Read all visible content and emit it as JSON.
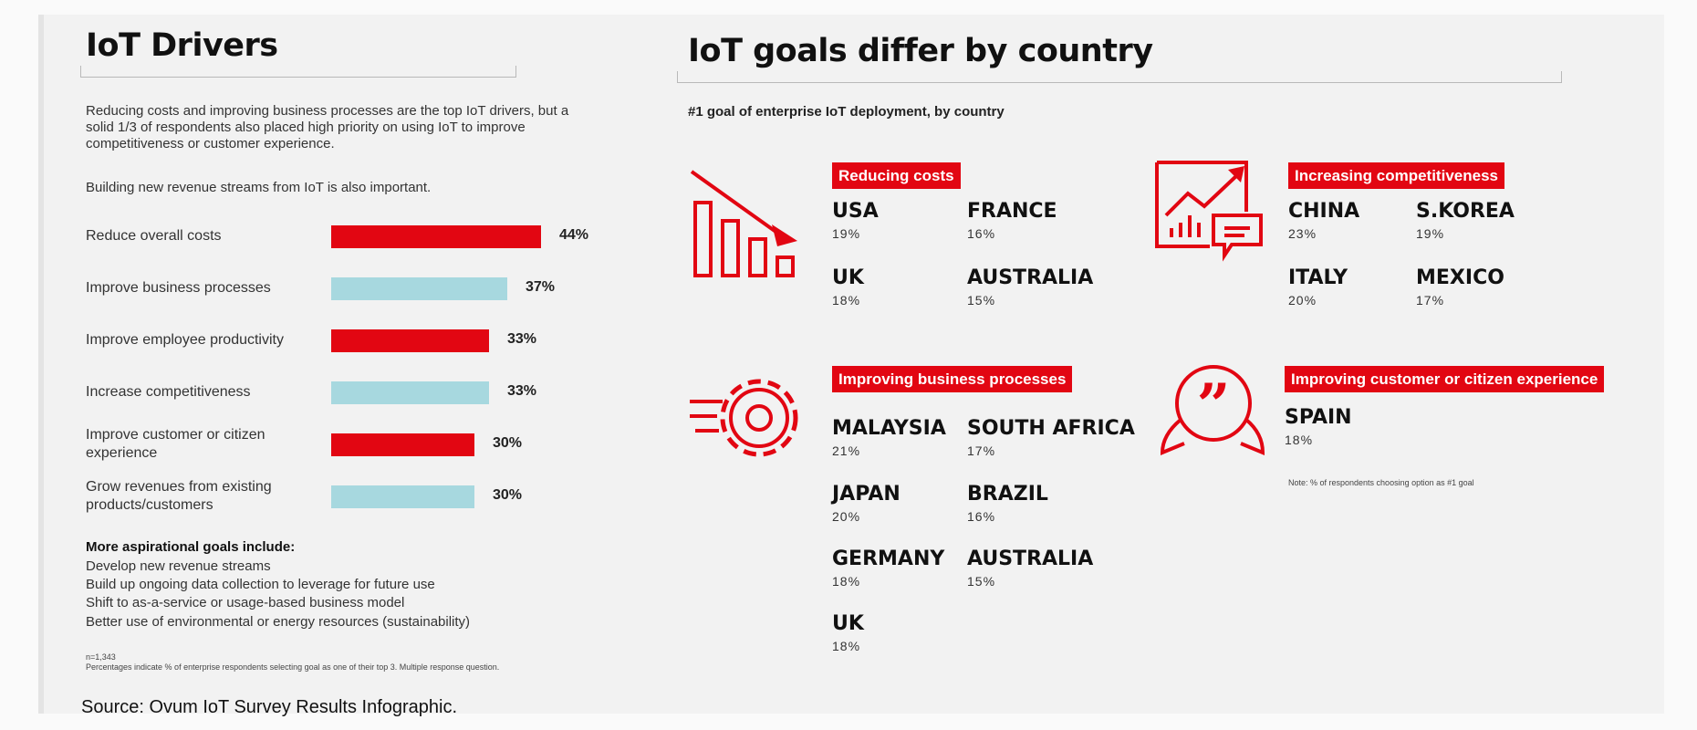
{
  "left": {
    "title": "IoT Drivers",
    "intro": "Reducing costs and improving business processes are the top IoT drivers, but a solid 1/3 of respondents also placed high priority on using IoT to improve competitiveness or customer experience.",
    "intro2": "Building new revenue streams from IoT is also important.",
    "aspirational_heading": "More aspirational goals include:",
    "aspirational": [
      "Develop new revenue streams",
      "Build up ongoing data collection to leverage for future use",
      "Shift to as-a-service or usage-based business model",
      "Better use of environmental or energy resources (sustainability)"
    ],
    "n": "n=1,343",
    "footnote": "Percentages indicate % of enterprise respondents selecting goal as one of their top 3. Multiple response question."
  },
  "chart_data": {
    "type": "bar",
    "orientation": "horizontal",
    "categories": [
      "Reduce overall costs",
      "Improve business processes",
      "Improve employee productivity",
      "Increase competitiveness",
      "Improve customer or citizen experience",
      "Grow revenues from existing products/customers"
    ],
    "values": [
      44,
      37,
      33,
      33,
      30,
      30
    ],
    "value_labels": [
      "44%",
      "37%",
      "33%",
      "33%",
      "30%",
      "30%"
    ],
    "bar_colors": [
      "#e20612",
      "#a7d8df",
      "#e20612",
      "#a7d8df",
      "#e20612",
      "#a7d8df"
    ],
    "xlim": [
      0,
      44
    ]
  },
  "right": {
    "title": "IoT goals differ by country",
    "subtitle": "#1 goal of enterprise IoT deployment, by country",
    "groups": [
      {
        "label": "Reducing costs",
        "icon": "declining-bar-chart-icon",
        "countries": [
          {
            "name": "USA",
            "pct": "19%"
          },
          {
            "name": "FRANCE",
            "pct": "16%"
          },
          {
            "name": "UK",
            "pct": "18%"
          },
          {
            "name": "AUSTRALIA",
            "pct": "15%"
          }
        ]
      },
      {
        "label": "Increasing competitiveness",
        "icon": "growth-chart-icon",
        "countries": [
          {
            "name": "CHINA",
            "pct": "23%"
          },
          {
            "name": "S.KOREA",
            "pct": "19%"
          },
          {
            "name": "ITALY",
            "pct": "20%"
          },
          {
            "name": "MEXICO",
            "pct": "17%"
          }
        ]
      },
      {
        "label": "Improving business processes",
        "icon": "gear-icon",
        "countries": [
          {
            "name": "MALAYSIA",
            "pct": "21%"
          },
          {
            "name": "SOUTH AFRICA",
            "pct": "17%"
          },
          {
            "name": "JAPAN",
            "pct": "20%"
          },
          {
            "name": "BRAZIL",
            "pct": "16%"
          },
          {
            "name": "GERMANY",
            "pct": "18%"
          },
          {
            "name": "AUSTRALIA",
            "pct": "15%"
          },
          {
            "name": "UK",
            "pct": "18%"
          }
        ]
      },
      {
        "label": "Improving customer or citizen experience",
        "icon": "quote-bubble-icon",
        "countries": [
          {
            "name": "SPAIN",
            "pct": "18%"
          }
        ]
      }
    ],
    "note": "Note: % of respondents choosing option as #1 goal"
  },
  "source": "Source: Ovum IoT Survey Results Infographic.",
  "colors": {
    "accent": "#e20612",
    "secondary": "#a7d8df"
  }
}
